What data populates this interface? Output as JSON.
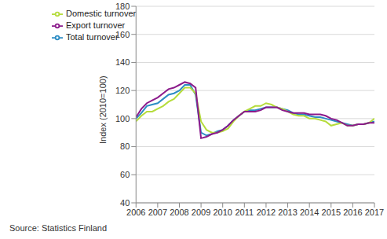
{
  "chart_data": {
    "type": "line",
    "y_label": "Index (2010=100)",
    "annotations": [
      "Source: Statistics Finland"
    ],
    "x": [
      2006,
      2006.25,
      2006.5,
      2006.75,
      2007,
      2007.25,
      2007.5,
      2007.75,
      2008,
      2008.25,
      2008.5,
      2008.75,
      2009,
      2009.25,
      2009.5,
      2009.75,
      2010,
      2010.25,
      2010.5,
      2010.75,
      2011,
      2011.25,
      2011.5,
      2011.75,
      2012,
      2012.25,
      2012.5,
      2012.75,
      2013,
      2013.25,
      2013.5,
      2013.75,
      2014,
      2014.25,
      2014.5,
      2014.75,
      2015,
      2015.25,
      2015.5,
      2015.75,
      2016,
      2016.25,
      2016.5,
      2016.75,
      2017
    ],
    "series": [
      {
        "name": "Total turnover",
        "color": "#2b8cc4",
        "values": [
          100,
          104,
          109,
          110,
          111,
          114,
          117,
          118,
          120,
          124,
          124,
          117,
          90,
          88,
          89,
          91,
          92,
          95,
          99,
          102,
          105,
          106,
          106,
          107,
          108,
          108,
          108,
          107,
          106,
          104,
          103,
          103,
          102,
          101,
          101,
          100,
          99,
          98,
          97,
          96,
          95,
          96,
          96,
          97,
          98
        ]
      },
      {
        "name": "Domestic turnover",
        "color": "#b5dc3c",
        "values": [
          98,
          102,
          105,
          105,
          107,
          109,
          112,
          114,
          118,
          122,
          122,
          118,
          98,
          92,
          90,
          90,
          91,
          93,
          98,
          102,
          105,
          107,
          109,
          109,
          111,
          110,
          108,
          107,
          105,
          103,
          102,
          102,
          100,
          100,
          99,
          98,
          95,
          96,
          97,
          95,
          95,
          96,
          96,
          97,
          100
        ]
      },
      {
        "name": "Export turnover",
        "color": "#8b1a8b",
        "values": [
          101,
          107,
          111,
          113,
          115,
          118,
          121,
          122,
          124,
          126,
          125,
          122,
          86,
          87,
          89,
          90,
          92,
          95,
          99,
          102,
          105,
          105,
          105,
          106,
          108,
          108,
          108,
          106,
          105,
          104,
          104,
          104,
          103,
          103,
          103,
          102,
          100,
          99,
          97,
          95,
          95,
          96,
          96,
          97,
          97
        ]
      }
    ],
    "xlim": [
      2006,
      2017
    ],
    "xticks": [
      2006,
      2007,
      2008,
      2009,
      2010,
      2011,
      2012,
      2013,
      2014,
      2015,
      2016,
      2017
    ],
    "ylim": [
      40,
      180
    ],
    "yticks": [
      40,
      60,
      80,
      100,
      120,
      140,
      160,
      180
    ],
    "grid": true,
    "legend": "upper left"
  }
}
